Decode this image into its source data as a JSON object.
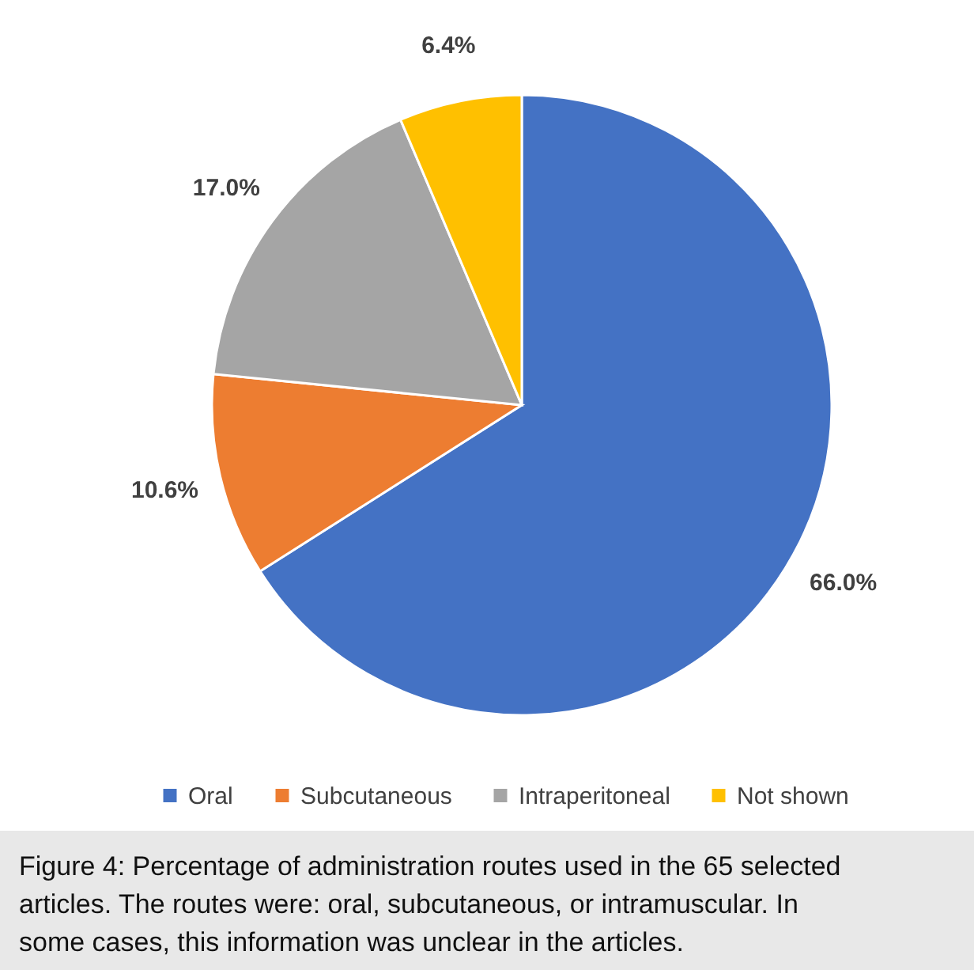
{
  "chart_data": {
    "type": "pie",
    "categories": [
      "Oral",
      "Subcutaneous",
      "Intraperitoneal",
      "Not shown"
    ],
    "values": [
      66.0,
      10.6,
      17.0,
      6.4
    ],
    "colors": [
      "#4472c4",
      "#ed7d31",
      "#a5a5a5",
      "#ffc000"
    ],
    "value_labels": [
      "66.0%",
      "10.6%",
      "17.0%",
      "6.4%"
    ],
    "legend": "bottom",
    "annotations": [
      "Figure 4: Percentage of administration routes used in the 65 selected articles. The routes were: oral, subcutaneous, or intramuscular. In some cases, this information was unclear in the articles."
    ]
  }
}
